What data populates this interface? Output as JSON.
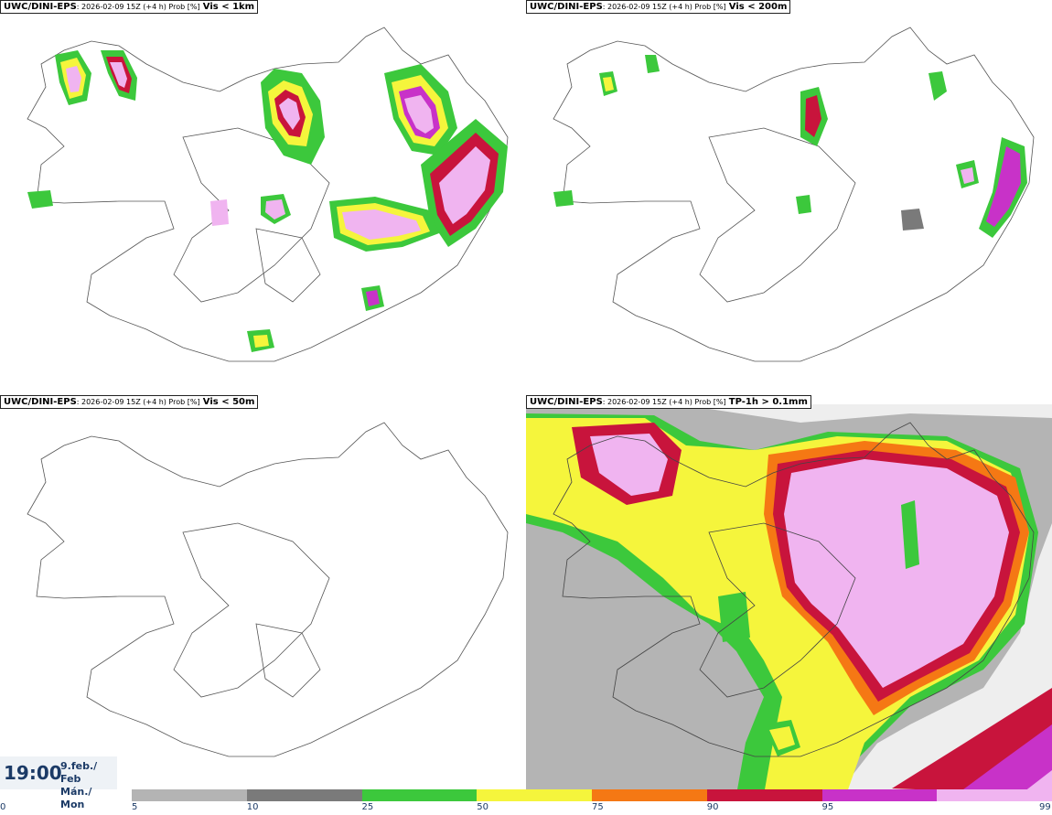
{
  "panels": [
    {
      "source": "UWC/DINI-EPS",
      "run": ": 2026-02-09 15Z (+4 h) Prob [%]",
      "variable": "Vis < 1km"
    },
    {
      "source": "UWC/DINI-EPS",
      "run": ": 2026-02-09 15Z (+4 h) Prob [%]",
      "variable": "Vis < 200m"
    },
    {
      "source": "UWC/DINI-EPS",
      "run": ": 2026-02-09 15Z (+4 h) Prob [%]",
      "variable": "Vis < 50m"
    },
    {
      "source": "UWC/DINI-EPS",
      "run": ": 2026-02-09 15Z (+4 h) Prob [%]",
      "variable": "TP-1h > 0.1mm"
    }
  ],
  "time": {
    "clock": "19:00",
    "date_line1": "9.feb./ Feb",
    "date_line2": "Mán./ Mon"
  },
  "legend": {
    "thresholds": [
      "0",
      "5",
      "10",
      "25",
      "50",
      "75",
      "90",
      "95",
      "99"
    ],
    "colors": [
      "#b4b4b4",
      "#7a7a7a",
      "#3cc83c",
      "#f5f53c",
      "#f57814",
      "#c8143c",
      "#c832c8",
      "#f0b4f0"
    ]
  }
}
